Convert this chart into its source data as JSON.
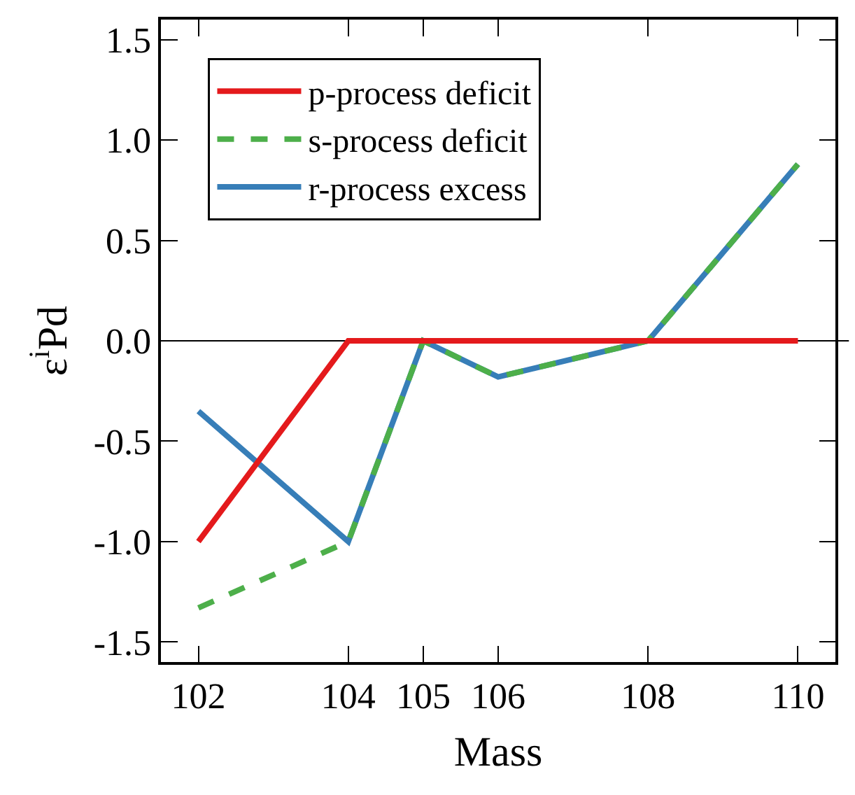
{
  "chart_data": {
    "type": "line",
    "xlabel": "Mass",
    "ylabel": "ε$^{i}$Pd",
    "x": [
      102,
      104,
      105,
      106,
      108,
      110
    ],
    "series": [
      {
        "name": "p-process deficit",
        "color": "#e41a1c",
        "line_style": "solid",
        "values": [
          -1.0,
          0,
          0,
          0,
          0,
          0
        ]
      },
      {
        "name": "s-process deficit",
        "color": "#4daf4a",
        "line_style": "dashed",
        "values": [
          -1.33,
          -1.0,
          0,
          -0.18,
          0,
          0.88
        ]
      },
      {
        "name": "r-process excess",
        "color": "#377eb8",
        "line_style": "solid",
        "values": [
          -0.35,
          -1.0,
          0,
          -0.18,
          0,
          0.88
        ]
      }
    ],
    "xlim": [
      101.5,
      110.5
    ],
    "xticks": [
      102,
      104,
      105,
      106,
      108,
      110
    ],
    "ylim": [
      -1.6,
      1.6
    ],
    "yticks": [
      {
        "value": -1.5,
        "label": "-1.5"
      },
      {
        "value": -1.0,
        "label": "-1.0"
      },
      {
        "value": -0.5,
        "label": "-0.5"
      },
      {
        "value": 0,
        "label": "0.0"
      },
      {
        "value": 0.5,
        "label": "0.5"
      },
      {
        "value": 1.0,
        "label": "1.0"
      },
      {
        "value": 1.5,
        "label": "1.5"
      }
    ],
    "ref_lines": [
      {
        "axis": "y",
        "value": 0,
        "color": "#000000",
        "line_style": "solid"
      }
    ],
    "grid": false,
    "legend": "top left",
    "marker": "none"
  }
}
